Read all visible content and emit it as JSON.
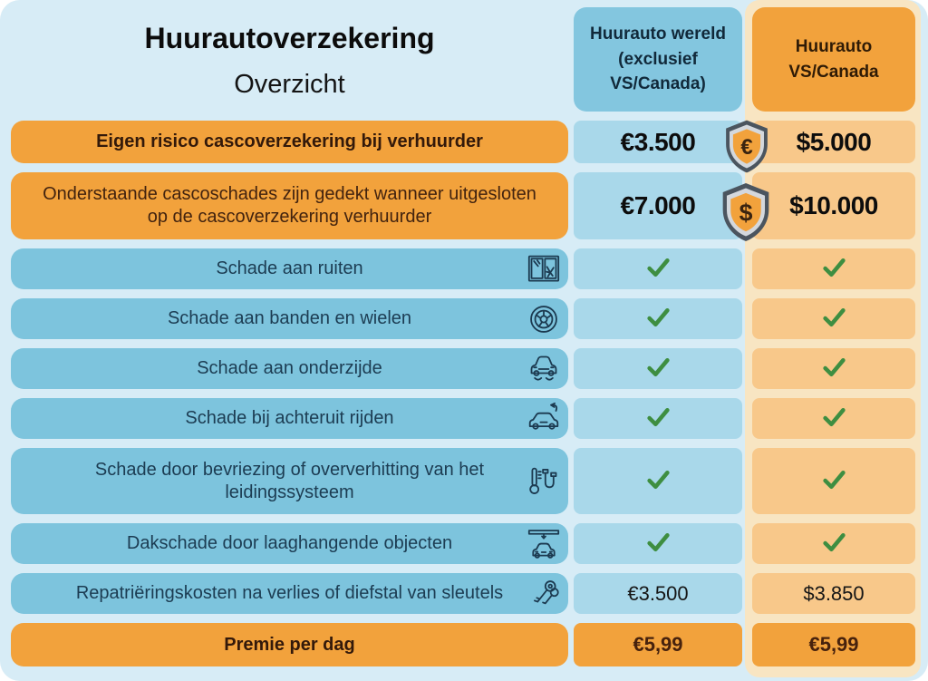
{
  "page": {
    "title": "Huurautoverzekering",
    "subtitle": "Overzicht"
  },
  "columns": [
    {
      "label": "Huurauto wereld (exclusief VS/Canada)"
    },
    {
      "label": "Huurauto VS/Canada"
    }
  ],
  "rows": [
    {
      "label": "Eigen risico cascoverzekering bij verhuurder",
      "style": "orange-bold",
      "icon": null,
      "badge": {
        "name": "shield-euro-icon",
        "symbol": "€"
      },
      "value_style": "big",
      "values": [
        "€3.500",
        "$5.000"
      ]
    },
    {
      "label": "Onderstaande cascoschades zijn gedekt wanneer uitgesloten op de cascoverzekering verhuurder",
      "style": "orange",
      "icon": null,
      "badge": {
        "name": "shield-dollar-icon",
        "symbol": "$"
      },
      "value_style": "big",
      "values": [
        "€7.000",
        "$10.000"
      ]
    },
    {
      "label": "Schade aan ruiten",
      "style": "blue",
      "icon": "broken-window-icon",
      "badge": null,
      "value_style": "check",
      "values": [
        "check",
        "check"
      ]
    },
    {
      "label": "Schade aan banden en wielen",
      "style": "blue",
      "icon": "tire-icon",
      "badge": null,
      "value_style": "check",
      "values": [
        "check",
        "check"
      ]
    },
    {
      "label": "Schade aan onderzijde",
      "style": "blue",
      "icon": "car-underside-icon",
      "badge": null,
      "value_style": "check",
      "values": [
        "check",
        "check"
      ]
    },
    {
      "label": "Schade bij achteruit rijden",
      "style": "blue",
      "icon": "car-reversing-icon",
      "badge": null,
      "value_style": "check",
      "values": [
        "check",
        "check"
      ]
    },
    {
      "label": "Schade door bevriezing of oververhitting van het leidingssysteem",
      "style": "blue",
      "icon": "frozen-pipes-icon",
      "badge": null,
      "value_style": "check",
      "values": [
        "check",
        "check"
      ]
    },
    {
      "label": "Dakschade door laaghangende objecten",
      "style": "blue",
      "icon": "low-object-icon",
      "badge": null,
      "value_style": "check",
      "values": [
        "check",
        "check"
      ]
    },
    {
      "label": "Repatriëringskosten na verlies of diefstal van sleutels",
      "style": "blue",
      "icon": "car-keys-icon",
      "badge": null,
      "value_style": "plain",
      "values": [
        "€3.500",
        "$3.850"
      ]
    },
    {
      "label": "Premie per dag",
      "style": "orange-bold",
      "icon": null,
      "badge": null,
      "value_style": "premium",
      "values": [
        "€5,99",
        "€5,99"
      ]
    }
  ],
  "check_mark": "✓",
  "colors": {
    "page_background": "#d7ecf6",
    "row_blue": "#7dc4dd",
    "cell_blue": "#a9d8ea",
    "accent_orange": "#f2a23c",
    "cell_light_orange": "#f8c88a",
    "column_band_orange": "#f8e5c2",
    "check_green": "#3e8e41"
  }
}
